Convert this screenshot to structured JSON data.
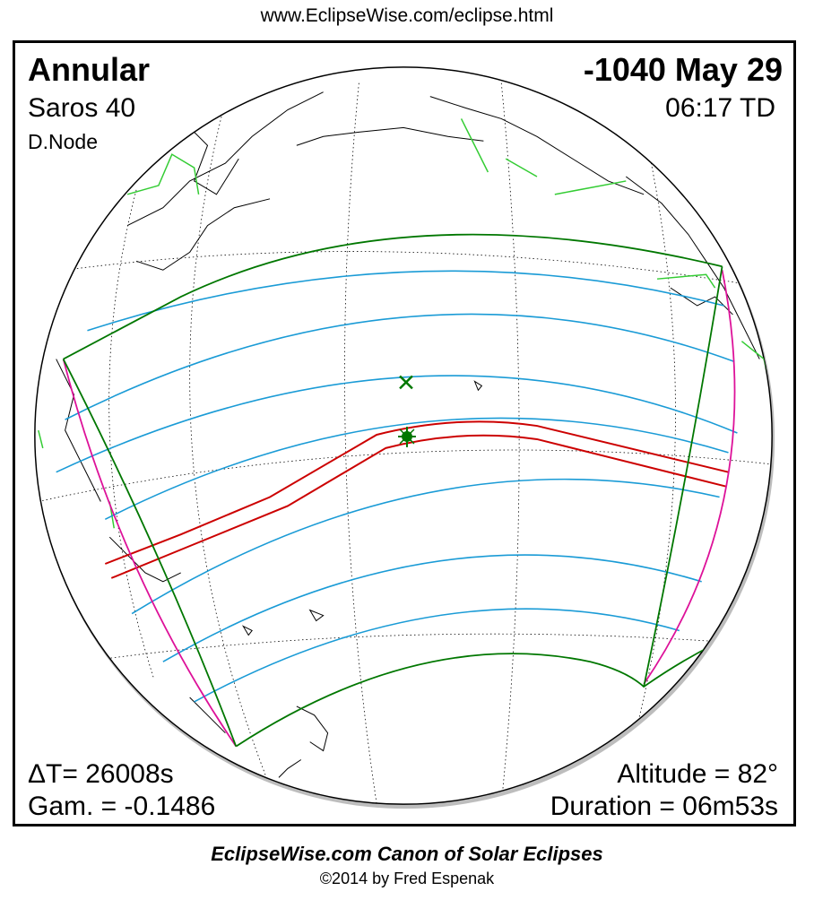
{
  "header": {
    "url": "www.EclipseWise.com/eclipse.html"
  },
  "eclipse": {
    "type": "Annular",
    "date": "-1040 May 29",
    "saros": "Saros  40",
    "time": "06:17 TD",
    "node": "D.Node",
    "delta_t": "ΔT=  26008s",
    "gamma": "Gam. = -0.1486",
    "altitude": "Altitude = 82°",
    "duration": "Duration = 06m53s"
  },
  "footer": {
    "title": "EclipseWise.com Canon of Solar Eclipses",
    "copyright": "©2014 by Fred Espenak"
  },
  "colors": {
    "central_path": "#cc0000",
    "penumbral_limits": "#007700",
    "partial_contours": "#1a9bd6",
    "rise_set_curves": "#dd1199",
    "borders": "#33cc33"
  }
}
